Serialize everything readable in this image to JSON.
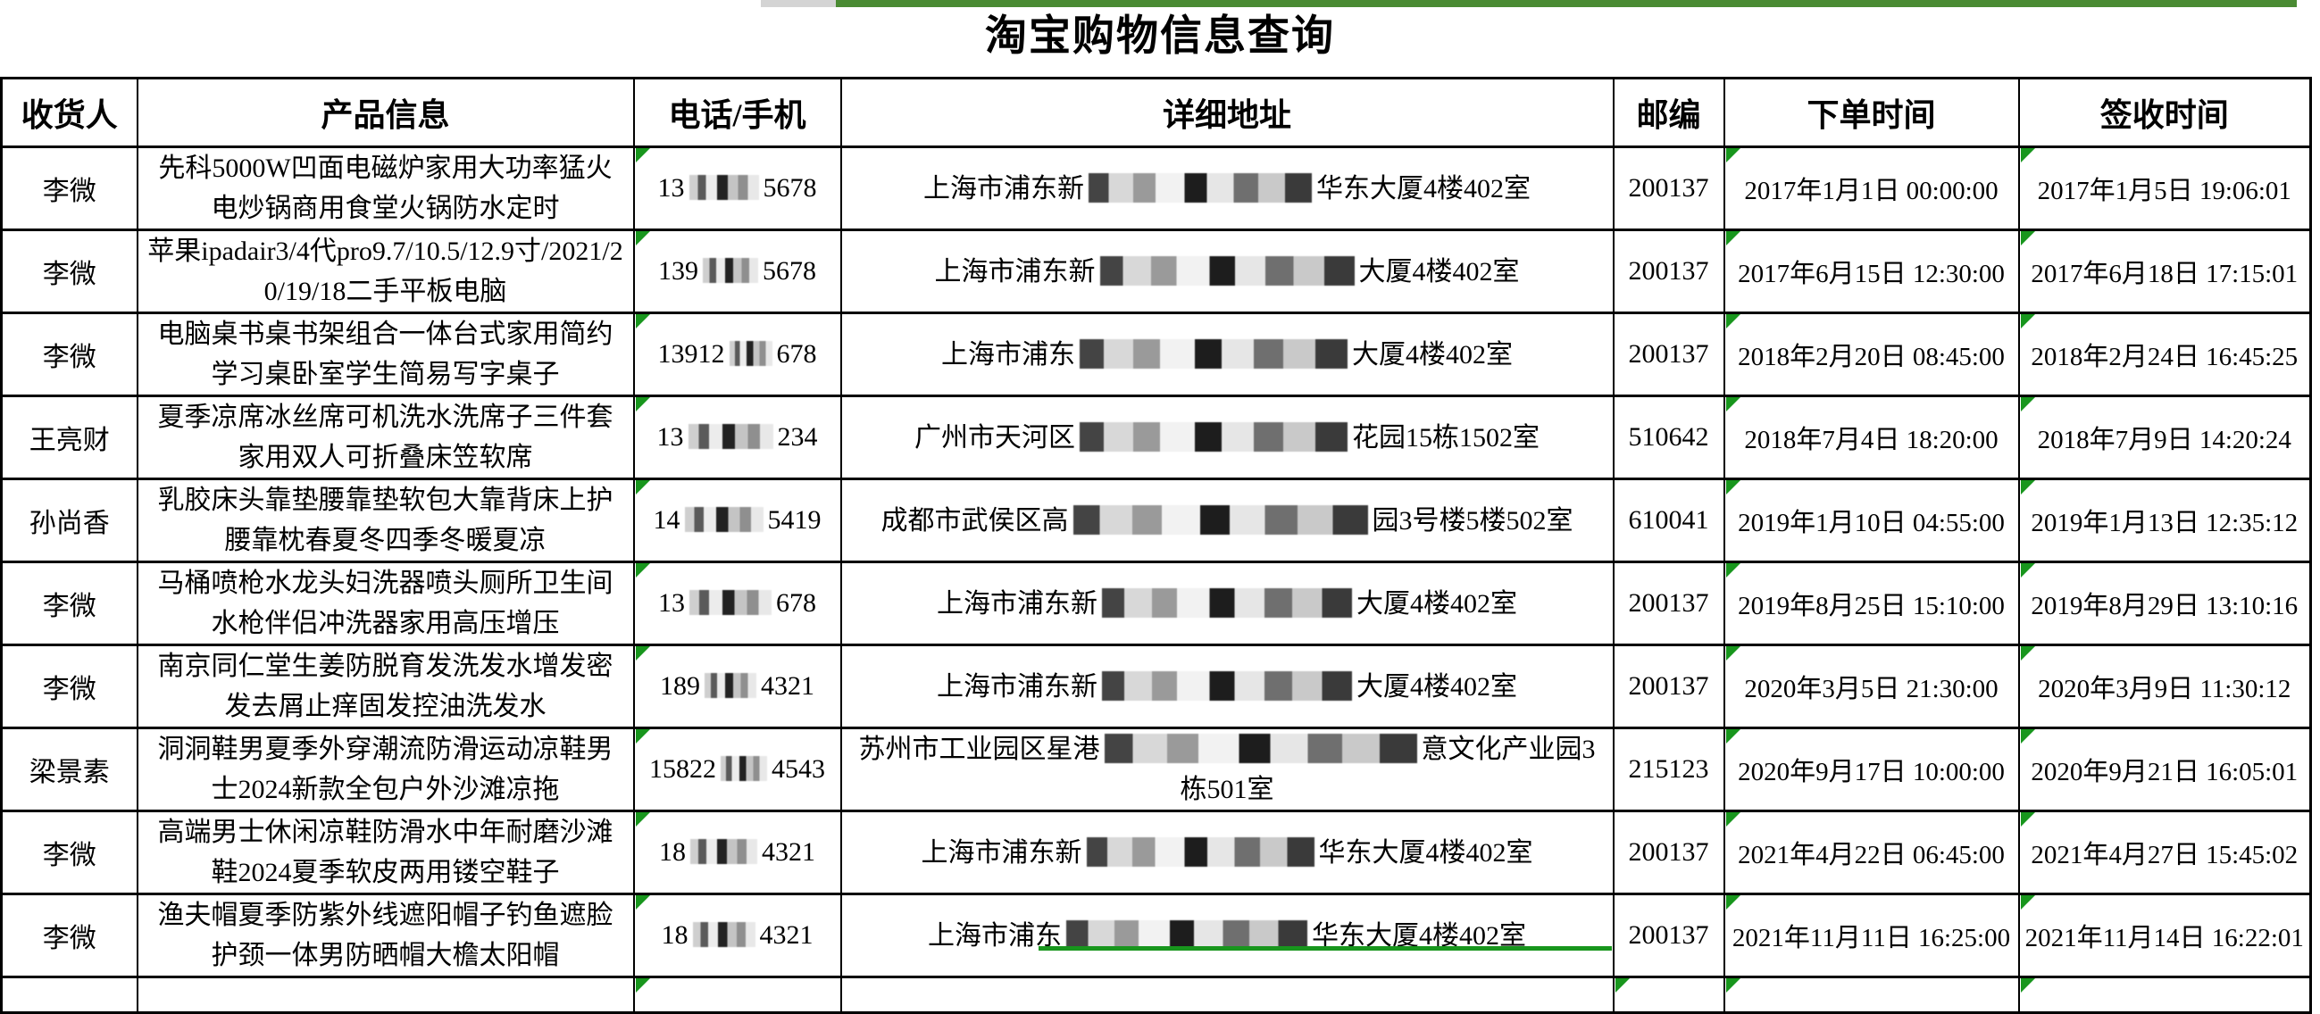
{
  "page": {
    "title": "淘宝购物信息查询"
  },
  "colors": {
    "topbar_green": "#4a8b33",
    "topbar_gray": "#d4d4d4",
    "indicator_green": "#18961d",
    "selection_green": "#18961d",
    "border": "#000000",
    "text": "#000000"
  },
  "table": {
    "headers": [
      "收货人",
      "产品信息",
      "电话/手机",
      "详细地址",
      "邮编",
      "下单时间",
      "签收时间"
    ],
    "rows": [
      {
        "recipient": "李微",
        "product": "先科5000W凹面电磁炉家用大功率猛火电炒锅商用食堂火锅防水定时",
        "phone": {
          "prefix": "13",
          "suffix": "5678",
          "mask_w": 78
        },
        "address": {
          "prefix": "上海市浦东新",
          "suffix": "华东大厦4楼402室",
          "mask_w": 250
        },
        "zip": "200137",
        "order_time": "2017年1月1日 00:00:00",
        "sign_time": "2017年1月5日 19:06:01"
      },
      {
        "recipient": "李微",
        "product": "苹果ipadair3/4代pro9.7/10.5/12.9寸/2021/20/19/18二手平板电脑",
        "phone": {
          "prefix": "139",
          "suffix": "5678",
          "mask_w": 62
        },
        "address": {
          "prefix": "上海市浦东新",
          "suffix": "大厦4楼402室",
          "mask_w": 285
        },
        "zip": "200137",
        "order_time": "2017年6月15日 12:30:00",
        "sign_time": "2017年6月18日 17:15:01"
      },
      {
        "recipient": "李微",
        "product": "电脑桌书桌书架组合一体台式家用简约学习桌卧室学生简易写字桌子",
        "phone": {
          "prefix": "13912",
          "suffix": "678",
          "mask_w": 48
        },
        "address": {
          "prefix": "上海市浦东",
          "suffix": "大厦4楼402室",
          "mask_w": 300
        },
        "zip": "200137",
        "order_time": "2018年2月20日 08:45:00",
        "sign_time": "2018年2月24日 16:45:25"
      },
      {
        "recipient": "王亮财",
        "product": "夏季凉席冰丝席可机洗水洗席子三件套家用双人可折叠床笠软席",
        "phone": {
          "prefix": "13",
          "suffix": "234",
          "mask_w": 95
        },
        "address": {
          "prefix": "广州市天河区",
          "suffix": "花园15栋1502室",
          "mask_w": 300
        },
        "zip": "510642",
        "order_time": "2018年7月4日 18:20:00",
        "sign_time": "2018年7月9日 14:20:24"
      },
      {
        "recipient": "孙尚香",
        "product": "乳胶床头靠垫腰靠垫软包大靠背床上护腰靠枕春夏冬四季冬暖夏凉",
        "phone": {
          "prefix": "14",
          "suffix": "5419",
          "mask_w": 88
        },
        "address": {
          "prefix": "成都市武侯区高",
          "suffix": "园3号楼5楼502室",
          "mask_w": 330
        },
        "zip": "610041",
        "order_time": "2019年1月10日 04:55:00",
        "sign_time": "2019年1月13日 12:35:12"
      },
      {
        "recipient": "李微",
        "product": "马桶喷枪水龙头妇洗器喷头厕所卫生间水枪伴侣冲洗器家用高压增压",
        "phone": {
          "prefix": "13",
          "suffix": "678",
          "mask_w": 92
        },
        "address": {
          "prefix": "上海市浦东新",
          "suffix": "大厦4楼402室",
          "mask_w": 280
        },
        "zip": "200137",
        "order_time": "2019年8月25日 15:10:00",
        "sign_time": "2019年8月29日 13:10:16"
      },
      {
        "recipient": "李微",
        "product": "南京同仁堂生姜防脱育发洗发水增发密发去屑止痒固发控油洗发水",
        "phone": {
          "prefix": "189",
          "suffix": "4321",
          "mask_w": 58
        },
        "address": {
          "prefix": "上海市浦东新",
          "suffix": "大厦4楼402室",
          "mask_w": 280
        },
        "zip": "200137",
        "order_time": "2020年3月5日 21:30:00",
        "sign_time": "2020年3月9日 11:30:12"
      },
      {
        "recipient": "梁景素",
        "product": "洞洞鞋男夏季外穿潮流防滑运动凉鞋男士2024新款全包户外沙滩凉拖",
        "phone": {
          "prefix": "15822",
          "suffix": "4543",
          "mask_w": 52
        },
        "address": {
          "prefix": "苏州市工业园区星港",
          "suffix": "意文化产业园3栋501室",
          "mask_w": 350
        },
        "zip": "215123",
        "order_time": "2020年9月17日 10:00:00",
        "sign_time": "2020年9月21日 16:05:01"
      },
      {
        "recipient": "李微",
        "product": "高端男士休闲凉鞋防滑水中年耐磨沙滩鞋2024夏季软皮两用镂空鞋子",
        "phone": {
          "prefix": "18",
          "suffix": "4321",
          "mask_w": 75
        },
        "address": {
          "prefix": "上海市浦东新",
          "suffix": "华东大厦4楼402室",
          "mask_w": 255
        },
        "zip": "200137",
        "order_time": "2021年4月22日 06:45:00",
        "sign_time": "2021年4月27日 15:45:02"
      },
      {
        "recipient": "李微",
        "product": "渔夫帽夏季防紫外线遮阳帽子钓鱼遮脸护颈一体男防晒帽大檐太阳帽",
        "phone": {
          "prefix": "18",
          "suffix": "4321",
          "mask_w": 70
        },
        "address": {
          "prefix": "上海市浦东",
          "suffix": "华东大厦4楼402室",
          "mask_w": 270
        },
        "zip": "200137",
        "order_time": "2021年11月11日 16:25:00",
        "sign_time": "2021年11月14日 16:22:01"
      }
    ],
    "partial_row": {
      "present": true,
      "indicator_columns": [
        "phone",
        "zip",
        "order_time",
        "sign_time"
      ]
    }
  }
}
